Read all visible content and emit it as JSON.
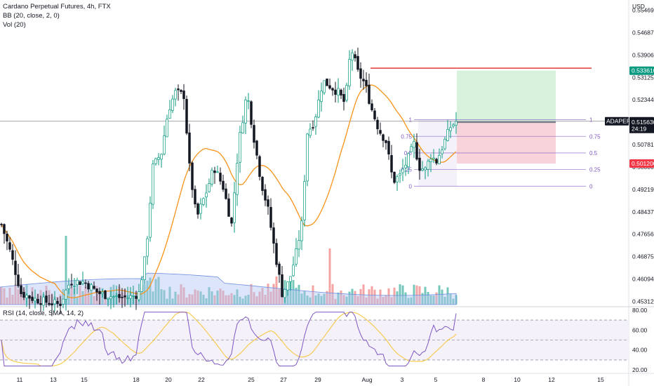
{
  "chart_data": {
    "type": "candlestick",
    "title": "Cardano Perpetual Futures, 4h, FTX",
    "indicators": [
      "BB (20, close, 2, 0)",
      "Vol (20)"
    ],
    "rsi_label": "RSI (14, close, SMA, 14, 2)",
    "currency": "USD",
    "y_ticks": [
      "0.554690",
      "0.546875",
      "0.539065",
      "0.531250",
      "0.523440",
      "0.515625",
      "0.507815",
      "0.500000",
      "0.492190",
      "0.484375",
      "0.476565",
      "0.468750",
      "0.460940",
      "0.453125"
    ],
    "y_tick_values": [
      0.55469,
      0.546875,
      0.539065,
      0.53125,
      0.52344,
      0.515625,
      0.507815,
      0.5,
      0.49219,
      0.484375,
      0.476565,
      0.46875,
      0.46094,
      0.453125
    ],
    "ylim": [
      0.4515,
      0.5568
    ],
    "x_ticks": [
      "11",
      "13",
      "15",
      "18",
      "20",
      "22",
      "25",
      "27",
      "29",
      "Aug",
      "3",
      "5",
      "8",
      "10",
      "12",
      "15"
    ],
    "rsi_ticks": [
      "80.00",
      "60.00",
      "40.00",
      "20.00"
    ],
    "rsi_tick_values": [
      80,
      60,
      40,
      20
    ],
    "rsi_ylim": [
      18,
      82
    ],
    "rsi_band": [
      30,
      70
    ],
    "tags": {
      "target": {
        "label": "0.533610",
        "value": 0.53361,
        "color": "#089981"
      },
      "symbol": {
        "label": "ADAPERP",
        "value": 0.515975,
        "color": "#131722"
      },
      "price": {
        "label": "0.515975",
        "value": 0.515975,
        "color": "#131722"
      },
      "countdown": {
        "label": "24:19",
        "value": 0.51337,
        "color": "#131722"
      },
      "entry": {
        "label": "0.515630",
        "value": 0.51563,
        "color": "#131722"
      },
      "stop": {
        "label": "0.501200",
        "value": 0.5012,
        "color": "#f23645"
      }
    },
    "fib_levels": [
      {
        "ratio": 1,
        "label": "1",
        "value": 0.5165
      },
      {
        "ratio": 0.75,
        "label": "0.75",
        "value": 0.5107
      },
      {
        "ratio": 0.5,
        "label": "0.5",
        "value": 0.5049
      },
      {
        "ratio": 0.25,
        "label": "0.25",
        "value": 0.4991
      },
      {
        "ratio": 0,
        "label": "0",
        "value": 0.4933
      }
    ],
    "resistance_level": 0.5345,
    "position": {
      "entry": 0.51563,
      "target": 0.53361,
      "stop": 0.5012
    },
    "colors": {
      "up": "#089981",
      "down": "#131722",
      "bb": "#f7931a",
      "vol_up": "#74c7bb",
      "vol_down": "#f5a3a3",
      "rsi": "#7e57c2",
      "rsi_ma": "#f7c948",
      "profit": "#d8f1dc",
      "loss": "#f8d3da",
      "fib": "#7e57c2",
      "resistance": "#e53935"
    }
  }
}
